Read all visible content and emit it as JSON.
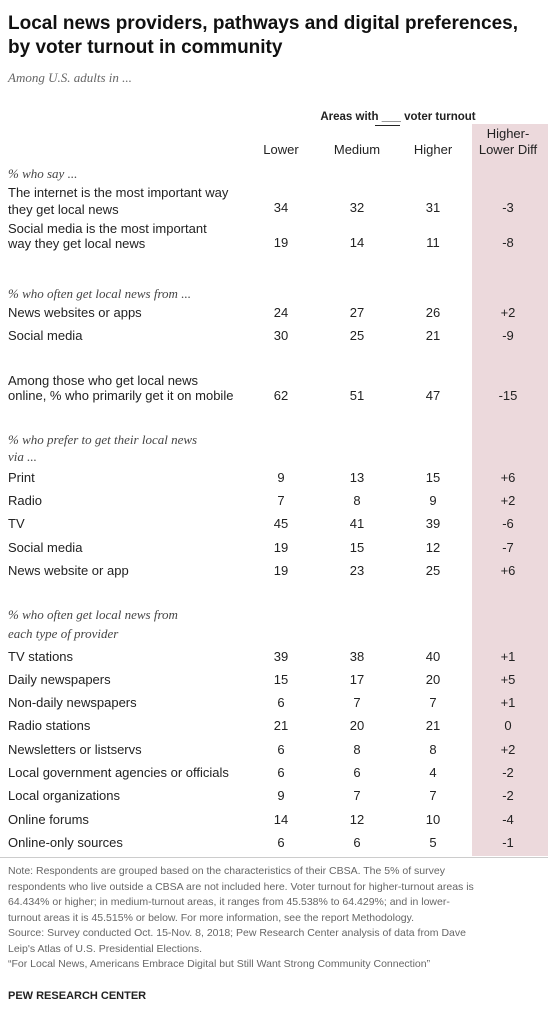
{
  "header": {
    "title": [
      "Local news providers, pathways and digital preferences,",
      "by voter turnout in community"
    ],
    "subtitle": "Among U.S. adults in ...",
    "group_label": "Areas with ___ voter turnout",
    "columns": [
      "Lower",
      "Medium",
      "Higher"
    ],
    "diff_column": [
      "Higher-",
      "Lower Diff"
    ]
  },
  "sections": [
    {
      "heading": [
        "% who say ..."
      ],
      "rows": [
        {
          "label": [
            "The internet is the most important way",
            "they get local news"
          ],
          "values": [
            34,
            32,
            31
          ],
          "diff": "-3"
        },
        {
          "label": [
            "Social media is the most important",
            "way they get local news"
          ],
          "values": [
            19,
            14,
            11
          ],
          "diff": "-8"
        }
      ]
    },
    {
      "heading": [
        "% who often get local news from ..."
      ],
      "rows": [
        {
          "label": [
            "News websites or apps"
          ],
          "values": [
            24,
            27,
            26
          ],
          "diff": "+2"
        },
        {
          "label": [
            "Social media"
          ],
          "values": [
            30,
            25,
            21
          ],
          "diff": "-9"
        }
      ]
    },
    {
      "rows": [
        {
          "label": [
            "Among those who get local news",
            "online, % who primarily get it on mobile"
          ],
          "values": [
            62,
            51,
            47
          ],
          "diff": "-15"
        }
      ]
    },
    {
      "heading": [
        "% who prefer to get their local news",
        "via ..."
      ],
      "rows": [
        {
          "label": [
            "Print"
          ],
          "values": [
            9,
            13,
            15
          ],
          "diff": "+6"
        },
        {
          "label": [
            "Radio"
          ],
          "values": [
            7,
            8,
            9
          ],
          "diff": "+2"
        },
        {
          "label": [
            "TV"
          ],
          "values": [
            45,
            41,
            39
          ],
          "diff": "-6"
        },
        {
          "label": [
            "Social media"
          ],
          "values": [
            19,
            15,
            12
          ],
          "diff": "-7"
        },
        {
          "label": [
            "News website or app"
          ],
          "values": [
            19,
            23,
            25
          ],
          "diff": "+6"
        }
      ]
    },
    {
      "heading": [
        "% who often get local news from",
        "each type of provider"
      ],
      "rows": [
        {
          "label": [
            "TV stations"
          ],
          "values": [
            39,
            38,
            40
          ],
          "diff": "+1"
        },
        {
          "label": [
            "Daily newspapers"
          ],
          "values": [
            15,
            17,
            20
          ],
          "diff": "+5"
        },
        {
          "label": [
            "Non-daily newspapers"
          ],
          "values": [
            6,
            7,
            7
          ],
          "diff": "+1"
        },
        {
          "label": [
            "Radio stations"
          ],
          "values": [
            21,
            20,
            21
          ],
          "diff": "0"
        },
        {
          "label": [
            "Newsletters or listservs"
          ],
          "values": [
            6,
            8,
            8
          ],
          "diff": "+2"
        },
        {
          "label": [
            "Local government agencies or officials"
          ],
          "values": [
            6,
            6,
            4
          ],
          "diff": "-2"
        },
        {
          "label": [
            "Local organizations"
          ],
          "values": [
            9,
            7,
            7
          ],
          "diff": "-2"
        },
        {
          "label": [
            "Online forums"
          ],
          "values": [
            14,
            12,
            10
          ],
          "diff": "-4"
        },
        {
          "label": [
            "Online-only sources"
          ],
          "values": [
            6,
            6,
            5
          ],
          "diff": "-1"
        }
      ]
    }
  ],
  "footer": {
    "notes": [
      "Note: Respondents are grouped based on the characteristics of their CBSA. The 5% of survey",
      "respondents who live outside a CBSA are not included here. Voter turnout for higher-turnout areas is",
      "64.434% or higher; in medium-turnout areas, it ranges from 45.538% to 64.429%; and in lower-",
      "turnout areas it is 45.515% or below. For more information, see the report Methodology.",
      "Source: Survey conducted Oct. 15-Nov. 8, 2018; Pew Research Center analysis of data from Dave",
      "Leip's Atlas of U.S. Presidential Elections.",
      "“For Local News, Americans Embrace Digital but Still Want Strong Community Connection”"
    ],
    "source_org": "PEW RESEARCH CENTER"
  }
}
